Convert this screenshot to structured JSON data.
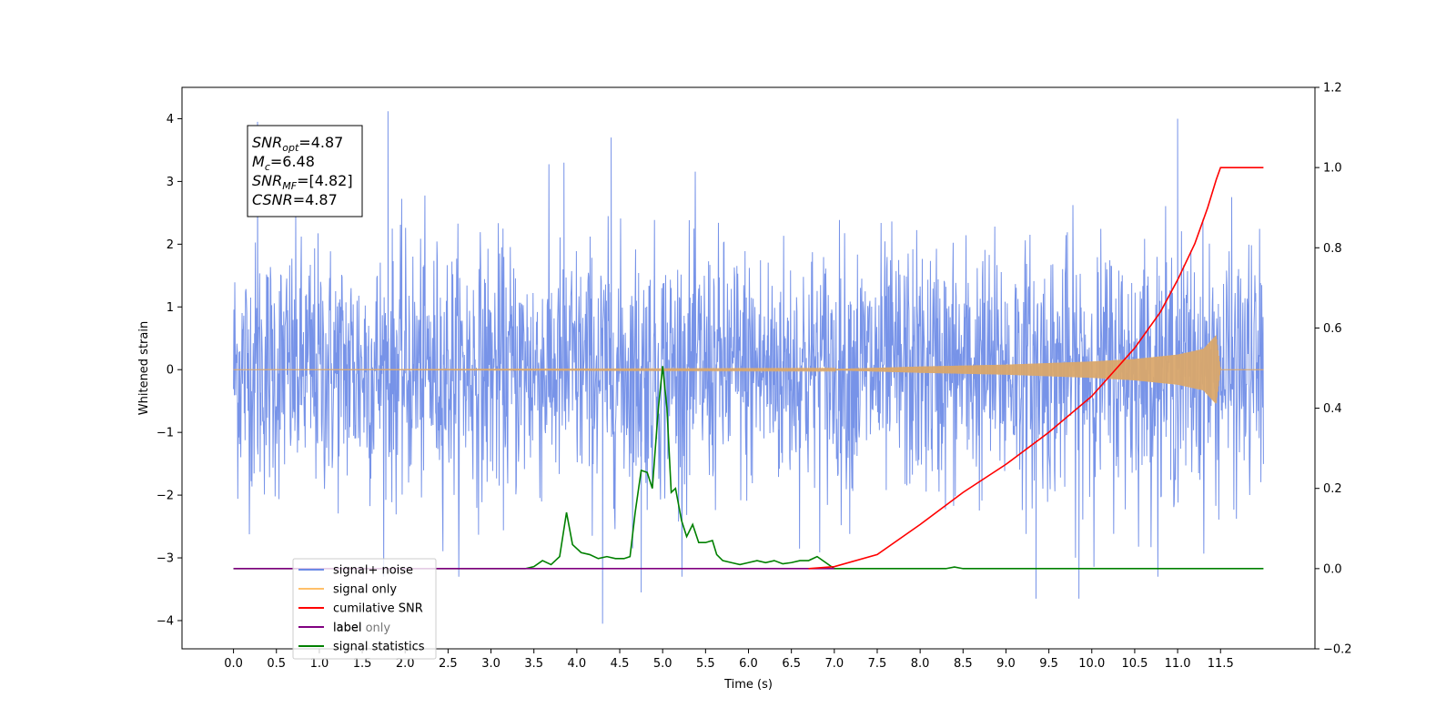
{
  "chart_data": {
    "type": "line",
    "xlabel": "Time (s)",
    "ylabel": "Whitened strain",
    "xlim": [
      -0.6,
      12.6
    ],
    "ylim": [
      -4.45,
      4.5
    ],
    "y2lim": [
      -0.2,
      1.2
    ],
    "x_ticks": [
      0.0,
      0.5,
      1.0,
      1.5,
      2.0,
      2.5,
      3.0,
      3.5,
      4.0,
      4.5,
      5.0,
      5.5,
      6.0,
      6.5,
      7.0,
      7.5,
      8.0,
      8.5,
      9.0,
      9.5,
      10.0,
      10.5,
      11.0,
      11.5
    ],
    "x_tick_labels": [
      "0.0",
      "0.5",
      "1.0",
      "1.5",
      "2.0",
      "2.5",
      "3.0",
      "3.5",
      "4.0",
      "4.5",
      "5.0",
      "5.5",
      "6.0",
      "6.5",
      "7.0",
      "7.5",
      "8.0",
      "8.5",
      "9.0",
      "9.5",
      "10.0",
      "10.5",
      "11.0",
      "11.5"
    ],
    "y_ticks": [
      -4,
      -3,
      -2,
      -1,
      0,
      1,
      2,
      3,
      4
    ],
    "y_tick_labels": [
      "−4",
      "−3",
      "−2",
      "−1",
      "0",
      "1",
      "2",
      "3",
      "4"
    ],
    "y2_ticks": [
      -0.2,
      0.0,
      0.2,
      0.4,
      0.6,
      0.8,
      1.0,
      1.2
    ],
    "y2_tick_labels": [
      "−0.2",
      "0.0",
      "0.2",
      "0.4",
      "0.6",
      "0.8",
      "1.0",
      "1.2"
    ],
    "legend_position": "lower-left",
    "grid": false,
    "series": [
      {
        "name": "signal+ noise",
        "axis": "left",
        "color": "#6b8ae6",
        "style": "noise",
        "x_range": [
          0.0,
          12.0
        ],
        "amplitude_std": 1.0,
        "peaks": [
          [
            1.8,
            4.12
          ],
          [
            11.0,
            4.0
          ],
          [
            4.4,
            3.7
          ],
          [
            3.85,
            3.3
          ],
          [
            4.3,
            -4.05
          ],
          [
            9.35,
            -3.65
          ],
          [
            9.85,
            -3.65
          ],
          [
            4.75,
            -3.55
          ],
          [
            0.28,
            3.95
          ]
        ]
      },
      {
        "name": "signal only",
        "axis": "left",
        "color": "#ffc069",
        "style": "chirp",
        "x": [
          0.0,
          7.0,
          8.0,
          9.0,
          10.0,
          10.5,
          11.0,
          11.3,
          11.45,
          11.5,
          12.0
        ],
        "envelope": [
          0.0,
          0.01,
          0.05,
          0.08,
          0.13,
          0.17,
          0.24,
          0.33,
          0.55,
          0.0,
          0.0
        ]
      },
      {
        "name": "cumilative SNR",
        "axis": "right",
        "color": "#ff0000",
        "x": [
          6.7,
          7.0,
          7.5,
          8.0,
          8.5,
          9.0,
          9.5,
          10.0,
          10.5,
          10.8,
          11.0,
          11.2,
          11.35,
          11.45,
          11.5,
          12.0
        ],
        "y": [
          0.0,
          0.005,
          0.035,
          0.11,
          0.19,
          0.26,
          0.34,
          0.43,
          0.55,
          0.64,
          0.72,
          0.81,
          0.9,
          0.97,
          1.0,
          1.0
        ]
      },
      {
        "name": "label",
        "axis": "right",
        "color": "#800080",
        "x": [
          0.0,
          7.0
        ],
        "y": [
          0.0,
          0.0
        ]
      },
      {
        "name": "signal statistics",
        "axis": "right",
        "color": "#008000",
        "x": [
          0.0,
          3.4,
          3.5,
          3.6,
          3.7,
          3.8,
          3.88,
          3.95,
          4.05,
          4.15,
          4.25,
          4.35,
          4.45,
          4.55,
          4.62,
          4.68,
          4.75,
          4.82,
          4.88,
          4.95,
          5.0,
          5.05,
          5.1,
          5.15,
          5.22,
          5.28,
          5.35,
          5.42,
          5.5,
          5.58,
          5.63,
          5.7,
          5.8,
          5.9,
          6.0,
          6.1,
          6.2,
          6.3,
          6.4,
          6.5,
          6.6,
          6.7,
          6.8,
          6.9,
          7.0,
          7.5,
          8.3,
          8.4,
          8.5,
          12.0
        ],
        "y": [
          0.0,
          0.0,
          0.005,
          0.02,
          0.01,
          0.03,
          0.14,
          0.06,
          0.04,
          0.035,
          0.025,
          0.03,
          0.025,
          0.025,
          0.03,
          0.14,
          0.245,
          0.24,
          0.2,
          0.4,
          0.505,
          0.4,
          0.19,
          0.2,
          0.12,
          0.08,
          0.11,
          0.065,
          0.065,
          0.07,
          0.035,
          0.02,
          0.015,
          0.01,
          0.015,
          0.02,
          0.015,
          0.02,
          0.012,
          0.015,
          0.02,
          0.02,
          0.03,
          0.015,
          0.0,
          0.0,
          0.0,
          0.004,
          0.0,
          0.0
        ]
      }
    ],
    "legend": [
      {
        "label": "signal+ noise",
        "color": "#6b8ae6"
      },
      {
        "label": "signal only",
        "color": "#ffc069"
      },
      {
        "label": "cumilative SNR",
        "color": "#ff0000"
      },
      {
        "label": "label",
        "color": "#800080"
      },
      {
        "label": "signal statistics",
        "color": "#008000"
      }
    ],
    "hidden_label_text": "label only",
    "stats_box": [
      {
        "base": "SNR",
        "sub": "opt",
        "value": "=4.87"
      },
      {
        "base": "M",
        "sub": "c",
        "value": "=6.48"
      },
      {
        "base": "SNR",
        "sub": "MF",
        "value": "=[4.82]"
      },
      {
        "base": "CSNR",
        "sub": "",
        "value": "=4.87"
      }
    ]
  }
}
